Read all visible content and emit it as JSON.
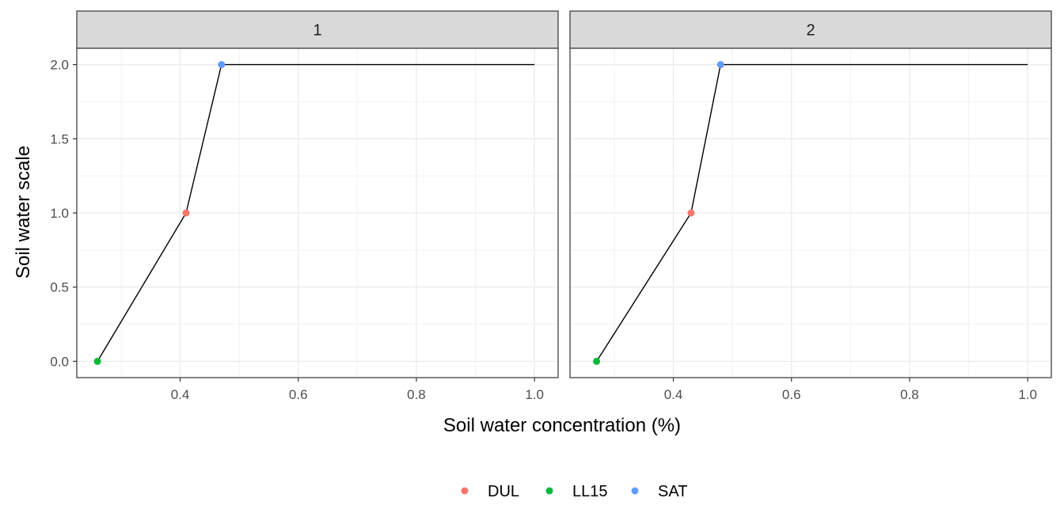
{
  "chart_data": {
    "type": "line",
    "xlabel": "Soil water concentration (%)",
    "ylabel": "Soil water scale",
    "xlim": [
      0.225,
      1.04
    ],
    "ylim": [
      -0.11,
      2.11
    ],
    "x_ticks": [
      0.4,
      0.6,
      0.8,
      1.0
    ],
    "x_tick_labels": [
      "0.4",
      "0.6",
      "0.8",
      "1.0"
    ],
    "y_ticks": [
      0.0,
      0.5,
      1.0,
      1.5,
      2.0
    ],
    "y_tick_labels": [
      "0.0",
      "0.5",
      "1.0",
      "1.5",
      "2.0"
    ],
    "grid": true,
    "legend_position": "bottom",
    "legend": [
      {
        "name": "DUL",
        "color": "#F8766D"
      },
      {
        "name": "LL15",
        "color": "#00BA38"
      },
      {
        "name": "SAT",
        "color": "#619CFF"
      }
    ],
    "line_color": "#000000",
    "panels": [
      {
        "label": "1",
        "line": {
          "x": [
            0.26,
            0.41,
            0.47,
            1.0
          ],
          "y": [
            0,
            1,
            2,
            2
          ]
        },
        "points": [
          {
            "series": "LL15",
            "x": 0.26,
            "y": 0
          },
          {
            "series": "DUL",
            "x": 0.41,
            "y": 1
          },
          {
            "series": "SAT",
            "x": 0.47,
            "y": 2
          }
        ]
      },
      {
        "label": "2",
        "line": {
          "x": [
            0.27,
            0.43,
            0.48,
            1.0
          ],
          "y": [
            0,
            1,
            2,
            2
          ]
        },
        "points": [
          {
            "series": "LL15",
            "x": 0.27,
            "y": 0
          },
          {
            "series": "DUL",
            "x": 0.43,
            "y": 1
          },
          {
            "series": "SAT",
            "x": 0.48,
            "y": 2
          }
        ]
      }
    ]
  }
}
